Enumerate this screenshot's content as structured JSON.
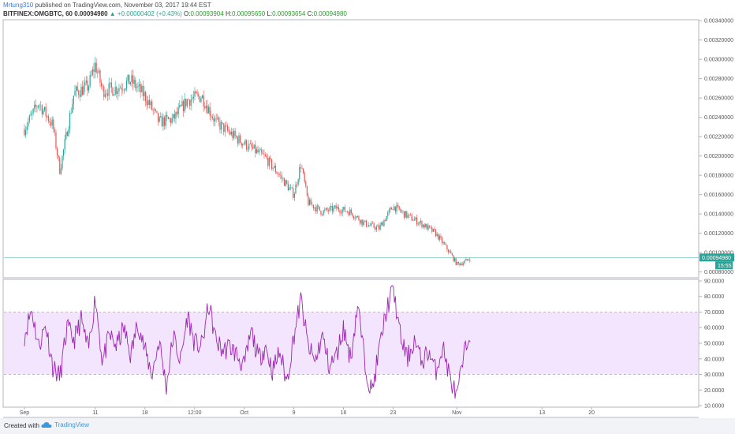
{
  "header": {
    "author": "Mrtung310",
    "published_text": " published on TradingView.com, November 03, 2017 19:44 EST",
    "symbol": "BITFINEX:OMGBTC, 60",
    "last": "0.00094980",
    "change_arrow": "▲",
    "change": "+0.00000402 (+0.43%)",
    "o_label": "O:",
    "o_value": "0.00093904",
    "h_label": "H:",
    "h_value": "0.00095650",
    "l_label": "L:",
    "l_value": "0.00093654",
    "c_label": "C:",
    "c_value": "0.00094980"
  },
  "footer": {
    "created_with": "Created with",
    "brand": "TradingView"
  },
  "colors": {
    "up": "#26a69a",
    "down": "#ef5350",
    "rsi_line": "#9c27b0",
    "rsi_band": "#f3e5fd",
    "last_price_line": "#26a69a"
  },
  "chart_data": [
    {
      "type": "candlestick",
      "price_axis_ticks": [
        "0.00340000",
        "0.00320000",
        "0.00300000",
        "0.00280000",
        "0.00260000",
        "0.00240000",
        "0.00220000",
        "0.00200000",
        "0.00180000",
        "0.00160000",
        "0.00140000",
        "0.00120000",
        "0.00100000",
        "0.00080000"
      ],
      "ylim": [
        0.00074,
        0.00341
      ],
      "last_price_label": "0.00094980",
      "countdown_label": "15:55",
      "x_ticks": [
        "Sep",
        "11",
        "18",
        "12:00",
        "Oct",
        "9",
        "16",
        "23",
        "Nov",
        "13",
        "20"
      ],
      "approx_path": [
        {
          "x": "Sep 1",
          "y": 0.00228
        },
        {
          "x": "Sep 3",
          "y": 0.00255
        },
        {
          "x": "Sep 5",
          "y": 0.00232
        },
        {
          "x": "Sep 6",
          "y": 0.00185
        },
        {
          "x": "Sep 8",
          "y": 0.00265
        },
        {
          "x": "Sep 10",
          "y": 0.00272
        },
        {
          "x": "Sep 11",
          "y": 0.00295
        },
        {
          "x": "Sep 12",
          "y": 0.00268
        },
        {
          "x": "Sep 14",
          "y": 0.0027
        },
        {
          "x": "Sep 16",
          "y": 0.00278
        },
        {
          "x": "Sep 18",
          "y": 0.00262
        },
        {
          "x": "Sep 20",
          "y": 0.00235
        },
        {
          "x": "Sep 22",
          "y": 0.00238
        },
        {
          "x": "Sep 24",
          "y": 0.00258
        },
        {
          "x": "Sep 26",
          "y": 0.00262
        },
        {
          "x": "Sep 28",
          "y": 0.00235
        },
        {
          "x": "Oct 1",
          "y": 0.00218
        },
        {
          "x": "Oct 3",
          "y": 0.00208
        },
        {
          "x": "Oct 5",
          "y": 0.00198
        },
        {
          "x": "Oct 7",
          "y": 0.0018
        },
        {
          "x": "Oct 9",
          "y": 0.0016
        },
        {
          "x": "Oct 10",
          "y": 0.00192
        },
        {
          "x": "Oct 11",
          "y": 0.00152
        },
        {
          "x": "Oct 13",
          "y": 0.00142
        },
        {
          "x": "Oct 15",
          "y": 0.00146
        },
        {
          "x": "Oct 17",
          "y": 0.00142
        },
        {
          "x": "Oct 19",
          "y": 0.0013
        },
        {
          "x": "Oct 21",
          "y": 0.00125
        },
        {
          "x": "Oct 23",
          "y": 0.00148
        },
        {
          "x": "Oct 25",
          "y": 0.00138
        },
        {
          "x": "Oct 27",
          "y": 0.0013
        },
        {
          "x": "Oct 29",
          "y": 0.0012
        },
        {
          "x": "Oct 31",
          "y": 0.001
        },
        {
          "x": "Nov 1",
          "y": 0.00088
        },
        {
          "x": "Nov 2",
          "y": 0.0009
        },
        {
          "x": "Nov 3",
          "y": 0.00095
        }
      ]
    },
    {
      "type": "line",
      "indicator": "RSI",
      "ylim": [
        9,
        91
      ],
      "y_ticks": [
        "90.0000",
        "80.0000",
        "70.0000",
        "60.0000",
        "50.0000",
        "40.0000",
        "30.0000",
        "20.0000",
        "10.0000"
      ],
      "bands": [
        70,
        30
      ],
      "approx_path": [
        {
          "x": "Sep 1",
          "y": 55
        },
        {
          "x": "Sep 2",
          "y": 72
        },
        {
          "x": "Sep 3",
          "y": 48
        },
        {
          "x": "Sep 4",
          "y": 62
        },
        {
          "x": "Sep 5",
          "y": 35
        },
        {
          "x": "Sep 6",
          "y": 28
        },
        {
          "x": "Sep 7",
          "y": 60
        },
        {
          "x": "Sep 8",
          "y": 52
        },
        {
          "x": "Sep 9",
          "y": 65
        },
        {
          "x": "Sep 10",
          "y": 45
        },
        {
          "x": "Sep 11",
          "y": 80
        },
        {
          "x": "Sep 12",
          "y": 38
        },
        {
          "x": "Sep 13",
          "y": 55
        },
        {
          "x": "Sep 14",
          "y": 48
        },
        {
          "x": "Sep 15",
          "y": 60
        },
        {
          "x": "Sep 16",
          "y": 42
        },
        {
          "x": "Sep 17",
          "y": 64
        },
        {
          "x": "Sep 18",
          "y": 45
        },
        {
          "x": "Sep 19",
          "y": 30
        },
        {
          "x": "Sep 20",
          "y": 52
        },
        {
          "x": "Sep 21",
          "y": 22
        },
        {
          "x": "Sep 22",
          "y": 55
        },
        {
          "x": "Sep 23",
          "y": 38
        },
        {
          "x": "Sep 24",
          "y": 68
        },
        {
          "x": "Sep 25",
          "y": 50
        },
        {
          "x": "Sep 26",
          "y": 48
        },
        {
          "x": "Sep 27",
          "y": 75
        },
        {
          "x": "Sep 28",
          "y": 52
        },
        {
          "x": "Sep 29",
          "y": 45
        },
        {
          "x": "Sep 30",
          "y": 48
        },
        {
          "x": "Oct 1",
          "y": 42
        },
        {
          "x": "Oct 2",
          "y": 35
        },
        {
          "x": "Oct 3",
          "y": 58
        },
        {
          "x": "Oct 4",
          "y": 40
        },
        {
          "x": "Oct 5",
          "y": 48
        },
        {
          "x": "Oct 6",
          "y": 32
        },
        {
          "x": "Oct 7",
          "y": 45
        },
        {
          "x": "Oct 8",
          "y": 25
        },
        {
          "x": "Oct 9",
          "y": 55
        },
        {
          "x": "Oct 10",
          "y": 78
        },
        {
          "x": "Oct 11",
          "y": 48
        },
        {
          "x": "Oct 12",
          "y": 38
        },
        {
          "x": "Oct 13",
          "y": 55
        },
        {
          "x": "Oct 14",
          "y": 35
        },
        {
          "x": "Oct 15",
          "y": 42
        },
        {
          "x": "Oct 16",
          "y": 60
        },
        {
          "x": "Oct 17",
          "y": 40
        },
        {
          "x": "Oct 18",
          "y": 75
        },
        {
          "x": "Oct 19",
          "y": 38
        },
        {
          "x": "Oct 20",
          "y": 18
        },
        {
          "x": "Oct 21",
          "y": 45
        },
        {
          "x": "Oct 22",
          "y": 70
        },
        {
          "x": "Oct 23",
          "y": 86
        },
        {
          "x": "Oct 24",
          "y": 55
        },
        {
          "x": "Oct 25",
          "y": 40
        },
        {
          "x": "Oct 26",
          "y": 52
        },
        {
          "x": "Oct 27",
          "y": 38
        },
        {
          "x": "Oct 28",
          "y": 45
        },
        {
          "x": "Oct 29",
          "y": 32
        },
        {
          "x": "Oct 30",
          "y": 48
        },
        {
          "x": "Oct 31",
          "y": 28
        },
        {
          "x": "Nov 1",
          "y": 15
        },
        {
          "x": "Nov 2",
          "y": 42
        },
        {
          "x": "Nov 3",
          "y": 60
        }
      ]
    }
  ]
}
